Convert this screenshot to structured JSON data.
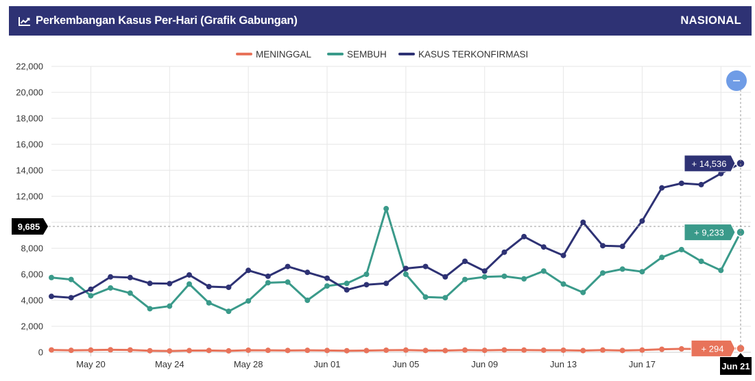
{
  "header": {
    "title": "Perkembangan Kasus Per-Hari (Grafik Gabungan)",
    "region": "NASIONAL",
    "title_icon": "line-chart-icon"
  },
  "colors": {
    "header_bg": "#2e3274",
    "meninggal": "#e8735a",
    "sembuh": "#3a9a8a",
    "terkonfirmasi": "#2e3274",
    "zoom_button": "#6f9ce6",
    "crosshair_label_bg": "#000000"
  },
  "crosshair": {
    "y_label": "9,685",
    "y_value": 9685,
    "x_label": "Jun 21"
  },
  "zoom_button": {
    "icon": "minus-icon"
  },
  "chart_data": {
    "type": "line",
    "legend": [
      "MENINGGAL",
      "SEMBUH",
      "KASUS TERKONFIRMASI"
    ],
    "legend_position": "top-center",
    "ylim": [
      0,
      22000
    ],
    "yticks": [
      0,
      2000,
      4000,
      6000,
      8000,
      10000,
      12000,
      14000,
      16000,
      18000,
      20000,
      22000
    ],
    "ytick_labels": [
      "0",
      "2,000",
      "4,000",
      "6,000",
      "8,000",
      "10,000",
      "12,000",
      "14,000",
      "16,000",
      "18,000",
      "20,000",
      "22,000"
    ],
    "x_tick_labels": [
      "May 20",
      "May 24",
      "May 28",
      "Jun 01",
      "Jun 05",
      "Jun 09",
      "Jun 13",
      "Jun 17",
      "Jun 21"
    ],
    "x_tick_index": [
      2,
      6,
      10,
      14,
      18,
      22,
      26,
      30,
      34
    ],
    "grid": true,
    "series": [
      {
        "name": "KASUS TERKONFIRMASI",
        "end_label": "+ 14,536",
        "values": [
          4300,
          4200,
          4850,
          5800,
          5750,
          5300,
          5280,
          5950,
          5050,
          5000,
          6300,
          5850,
          6600,
          6150,
          5700,
          4800,
          5200,
          5300,
          6450,
          6600,
          5800,
          7000,
          6250,
          7700,
          8900,
          8100,
          7450,
          10000,
          8200,
          8150,
          10100,
          12650,
          13000,
          12900,
          13750,
          14536
        ]
      },
      {
        "name": "SEMBUH",
        "end_label": "+ 9,233",
        "values": [
          5750,
          5600,
          4350,
          4950,
          4550,
          3350,
          3550,
          5250,
          3800,
          3150,
          3950,
          5350,
          5400,
          4000,
          5100,
          5300,
          6000,
          11050,
          6000,
          4250,
          4200,
          5600,
          5800,
          5850,
          5650,
          6250,
          5250,
          4600,
          6100,
          6400,
          6200,
          7300,
          7900,
          7000,
          6300,
          9233
        ]
      },
      {
        "name": "MENINGGAL",
        "end_label": "+ 294",
        "values": [
          180,
          150,
          170,
          190,
          180,
          120,
          100,
          130,
          140,
          110,
          160,
          150,
          140,
          150,
          140,
          120,
          130,
          160,
          170,
          140,
          130,
          170,
          150,
          180,
          170,
          160,
          160,
          130,
          170,
          140,
          170,
          230,
          260,
          250,
          300,
          294
        ]
      }
    ]
  }
}
